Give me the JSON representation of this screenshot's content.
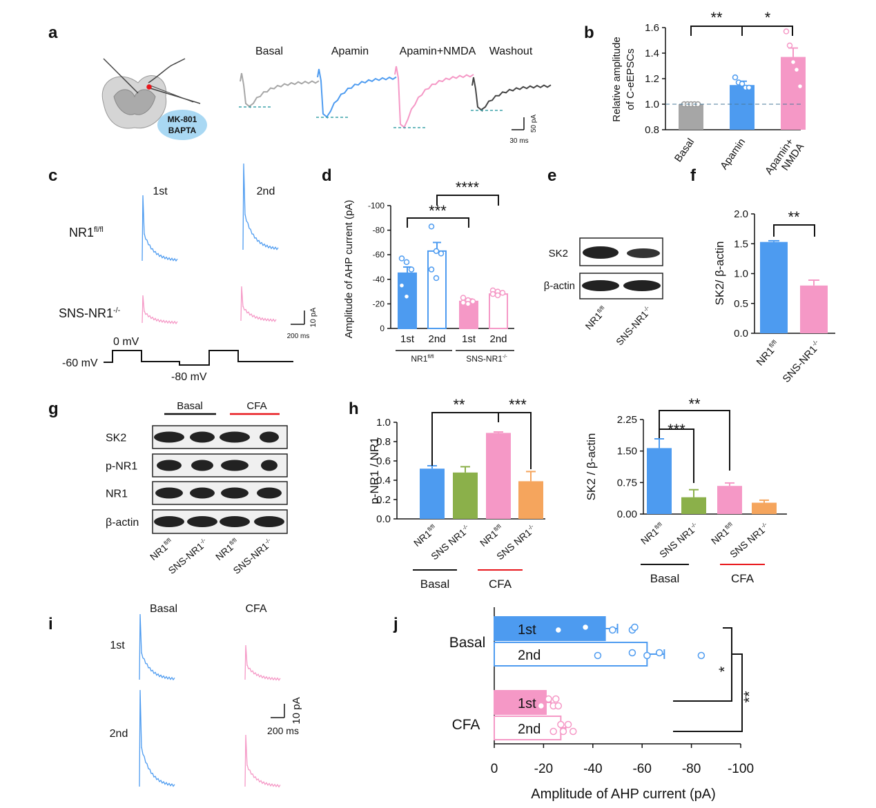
{
  "colors": {
    "blue": "#4d9bf0",
    "pink": "#f598c6",
    "gray": "#a6a6a6",
    "green": "#8bb04a",
    "orange": "#f5a55d",
    "red": "#e8161b",
    "teal": "#3aa2a8",
    "dark": "#444444"
  },
  "panels": {
    "a": "a",
    "b": "b",
    "c": "c",
    "d": "d",
    "e": "e",
    "f": "f",
    "g": "g",
    "h": "h",
    "i": "i",
    "j": "j"
  },
  "panel_a": {
    "box_line1": "MK-801",
    "box_line2": "BAPTA",
    "labels": [
      "Basal",
      "Apamin",
      "Apamin+NMDA",
      "Washout"
    ],
    "scale_y": "50 pA",
    "scale_x": "30 ms"
  },
  "panel_c": {
    "col1": "1st",
    "col2": "2nd",
    "row1": "NR1",
    "row1_sup": "fl/fl",
    "row2": "SNS-NR1",
    "row2_sup": "-/-",
    "scale_y": "10 pA",
    "scale_x": "200 ms",
    "v_hold": "-60 mV",
    "v_step1": "0 mV",
    "v_step2": "-80 mV"
  },
  "panel_e": {
    "band1": "SK2",
    "band2": "β-actin",
    "lane1": "NR1",
    "lane1_sup": "fl/fl",
    "lane2": "SNS-NR1",
    "lane2_sup": "-/-"
  },
  "panel_g": {
    "group1": "Basal",
    "group2": "CFA",
    "bands": [
      "SK2",
      "p-NR1",
      "NR1",
      "β-actin"
    ],
    "lane_a": "NR1",
    "lane_a_sup": "fl/fl",
    "lane_b": "SNS-NR1",
    "lane_b_sup": "-/-"
  },
  "panel_i": {
    "col1": "Basal",
    "col2": "CFA",
    "row1": "1st",
    "row2": "2nd",
    "scale_y": "10 pA",
    "scale_x": "200 ms"
  },
  "chart_data": [
    {
      "id": "b",
      "type": "bar",
      "categories": [
        "Basal",
        "Apamin",
        "Apamin+\nNMDA"
      ],
      "values": [
        1.0,
        1.15,
        1.37
      ],
      "errors": [
        0.0,
        0.03,
        0.07
      ],
      "points": [
        [
          1.0,
          1.0,
          1.0,
          1.0,
          1.0
        ],
        [
          1.21,
          1.17,
          1.16,
          1.13,
          1.13
        ],
        [
          1.57,
          1.46,
          1.33,
          1.27,
          1.14
        ]
      ],
      "ylabel": "Relative amplitude\nof C-eEPSCs",
      "ylim": [
        0.8,
        1.6
      ],
      "yticks": [
        "0.8",
        "1.0",
        "1.2",
        "1.4",
        "1.6"
      ],
      "refline": 1.0,
      "sig": [
        "**",
        "*"
      ]
    },
    {
      "id": "d",
      "type": "bar",
      "categories": [
        "1st",
        "2nd",
        "1st",
        "2nd"
      ],
      "groups": [
        "NR1fl/fl",
        "SNS-NR1-/-"
      ],
      "values": [
        -45,
        -63,
        -22,
        -28
      ],
      "errors": [
        5,
        7,
        2,
        2
      ],
      "points": [
        [
          -57,
          -54,
          -48,
          -35,
          -26
        ],
        [
          -83,
          -63,
          -61,
          -48,
          -41
        ],
        [
          -25,
          -23,
          -22,
          -21,
          -20
        ],
        [
          -31,
          -30,
          -29,
          -28,
          -27
        ]
      ],
      "ylabel": "Amplitude of AHP current (pA)",
      "ylim": [
        0,
        -100
      ],
      "yticks": [
        "0",
        "-20",
        "-40",
        "-60",
        "-80",
        "-100"
      ],
      "sig": [
        "***",
        "****"
      ]
    },
    {
      "id": "f",
      "type": "bar",
      "categories": [
        "NR1fl/fl",
        "SNS-NR1-/-"
      ],
      "values": [
        1.53,
        0.8
      ],
      "errors": [
        0.02,
        0.09
      ],
      "ylabel": "SK2/ β-actin",
      "ylim": [
        0,
        2.0
      ],
      "yticks": [
        "0.0",
        "0.5",
        "1.0",
        "1.5",
        "2.0"
      ],
      "sig": [
        "**"
      ]
    },
    {
      "id": "h1",
      "type": "bar",
      "categories": [
        "NR1fl/fl",
        "SNS NR1-/-",
        "NR1fl/fl",
        "SNS NR1-/-"
      ],
      "groups": [
        "Basal",
        "CFA"
      ],
      "values": [
        0.52,
        0.48,
        0.89,
        0.39
      ],
      "errors": [
        0.03,
        0.06,
        0.01,
        0.1
      ],
      "ylabel": "p-NR1 / NR1",
      "ylim": [
        0,
        1.0
      ],
      "yticks": [
        "0.0",
        "0.2",
        "0.4",
        "0.6",
        "0.8",
        "1.0"
      ],
      "sig": [
        "**",
        "***"
      ]
    },
    {
      "id": "h2",
      "type": "bar",
      "categories": [
        "NR1fl/fl",
        "SNS NR1-/-",
        "NR1fl/fl",
        "SNS NR1-/-"
      ],
      "groups": [
        "Basal",
        "CFA"
      ],
      "values": [
        1.57,
        0.4,
        0.67,
        0.27
      ],
      "errors": [
        0.22,
        0.18,
        0.07,
        0.06
      ],
      "ylabel": "SK2 / β-actin",
      "ylim": [
        0,
        2.25
      ],
      "yticks": [
        "0.00",
        "0.75",
        "1.50",
        "2.25"
      ],
      "sig": [
        "***",
        "**"
      ]
    },
    {
      "id": "j",
      "type": "bar",
      "orientation": "horizontal",
      "categories": [
        "1st",
        "2nd",
        "1st",
        "2nd"
      ],
      "groups": [
        "Basal",
        "CFA"
      ],
      "values": [
        -45,
        -62,
        -21,
        -27
      ],
      "errors": [
        5,
        7,
        2,
        2
      ],
      "points": [
        [
          -26,
          -37,
          -56,
          -57,
          -48
        ],
        [
          -42,
          -56,
          -62,
          -67,
          -84
        ],
        [
          -19,
          -22,
          -24,
          -25,
          -26
        ],
        [
          -24,
          -27,
          -28,
          -30,
          -32
        ]
      ],
      "xlabel": "Amplitude of AHP current (pA)",
      "xlim": [
        0,
        -100
      ],
      "xticks": [
        "0",
        "-20",
        "-40",
        "-60",
        "-80",
        "-100"
      ],
      "sig": [
        "*",
        "**"
      ]
    }
  ]
}
